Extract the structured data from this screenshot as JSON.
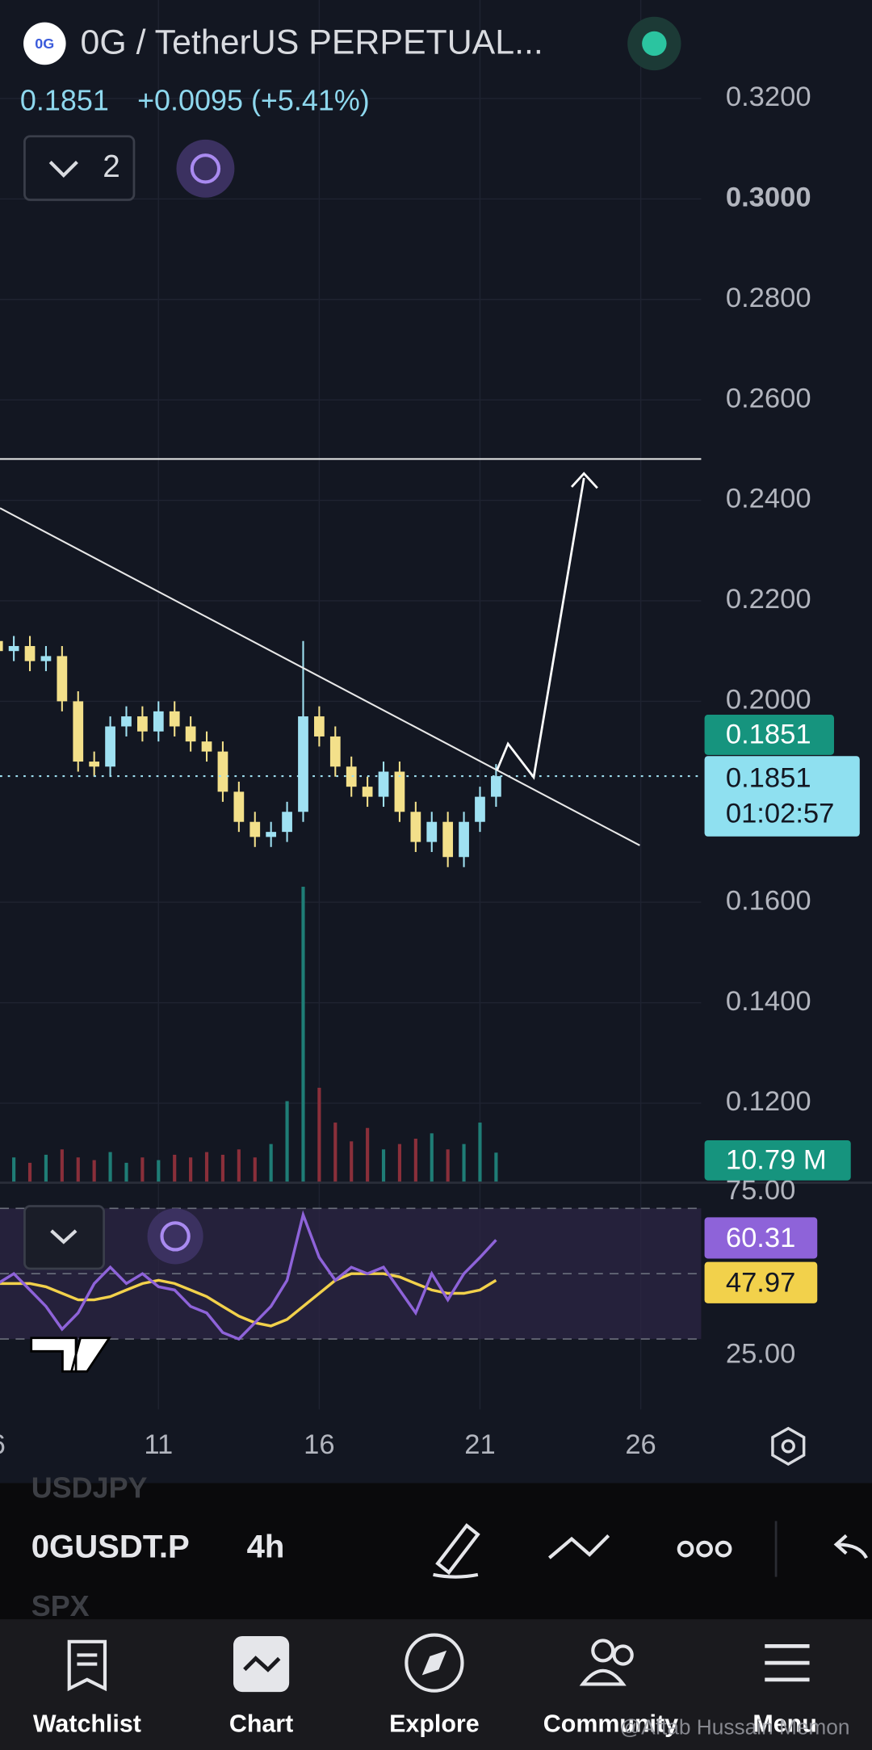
{
  "header": {
    "symbol_title": "0G / TetherUS PERPETUAL...",
    "change": "+0.0095 (+5.41%)",
    "indicator_count": "2"
  },
  "chart_data": {
    "type": "candlestick",
    "x": [
      6.0,
      6.5,
      7.0,
      7.5,
      8.0,
      8.5,
      9.0,
      9.5,
      10.0,
      10.5,
      11.0,
      11.5,
      12.0,
      12.5,
      13.0,
      13.5,
      14.0,
      14.5,
      15.0,
      15.5,
      16.0,
      16.5,
      17.0,
      17.5,
      18.0,
      18.5,
      19.0,
      19.5,
      20.0,
      20.5,
      21.0,
      21.5
    ],
    "open": [
      0.212,
      0.21,
      0.211,
      0.208,
      0.209,
      0.2,
      0.188,
      0.187,
      0.195,
      0.197,
      0.194,
      0.198,
      0.195,
      0.192,
      0.19,
      0.182,
      0.176,
      0.173,
      0.174,
      0.178,
      0.197,
      0.193,
      0.187,
      0.183,
      0.181,
      0.186,
      0.178,
      0.172,
      0.176,
      0.169,
      0.176,
      0.181
    ],
    "high": [
      0.214,
      0.213,
      0.213,
      0.211,
      0.211,
      0.202,
      0.19,
      0.197,
      0.199,
      0.199,
      0.2,
      0.2,
      0.197,
      0.194,
      0.192,
      0.184,
      0.178,
      0.176,
      0.18,
      0.212,
      0.199,
      0.195,
      0.189,
      0.185,
      0.188,
      0.188,
      0.18,
      0.178,
      0.178,
      0.178,
      0.183,
      0.1875
    ],
    "low": [
      0.208,
      0.208,
      0.206,
      0.206,
      0.198,
      0.186,
      0.185,
      0.185,
      0.193,
      0.192,
      0.192,
      0.193,
      0.19,
      0.188,
      0.18,
      0.174,
      0.171,
      0.171,
      0.172,
      0.176,
      0.191,
      0.185,
      0.181,
      0.179,
      0.179,
      0.176,
      0.17,
      0.17,
      0.167,
      0.167,
      0.174,
      0.179
    ],
    "close": [
      0.21,
      0.211,
      0.208,
      0.209,
      0.2,
      0.188,
      0.187,
      0.195,
      0.197,
      0.194,
      0.198,
      0.195,
      0.192,
      0.19,
      0.182,
      0.176,
      0.173,
      0.174,
      0.178,
      0.197,
      0.193,
      0.187,
      0.183,
      0.181,
      0.186,
      0.178,
      0.172,
      0.176,
      0.169,
      0.176,
      0.181,
      0.1851
    ],
    "up_color": "#9fe1f2",
    "down_color": "#f3e08a",
    "xlim": [
      6.07,
      27.88
    ],
    "xticks": [
      6,
      11,
      16,
      21,
      26
    ],
    "ylim": [
      0.1044,
      0.3396
    ],
    "yticks": [
      {
        "value": 0.32,
        "label": "0.3200"
      },
      {
        "value": 0.3,
        "label": "0.3000"
      },
      {
        "value": 0.28,
        "label": "0.2800"
      },
      {
        "value": 0.26,
        "label": "0.2600"
      },
      {
        "value": 0.24,
        "label": "0.2400"
      },
      {
        "value": 0.22,
        "label": "0.2200"
      },
      {
        "value": 0.2,
        "label": "0.2000"
      },
      {
        "value": 0.16,
        "label": "0.1600"
      },
      {
        "value": 0.14,
        "label": "0.1400"
      },
      {
        "value": 0.12,
        "label": "0.1200"
      }
    ],
    "grid": true,
    "mark_price_label": "0.1851",
    "countdown": "01:02:57",
    "volume": [
      8,
      9,
      7,
      10,
      12,
      9,
      8,
      11,
      7,
      9,
      8,
      10,
      9,
      11,
      10,
      12,
      9,
      14,
      30,
      110,
      35,
      22,
      15,
      20,
      12,
      14,
      16,
      18,
      12,
      14,
      22,
      10.79
    ],
    "volume_ylim": [
      0,
      125
    ],
    "volume_label": "10.79 M",
    "rsi": {
      "values": [
        47,
        50,
        45,
        40,
        33,
        38,
        47,
        52,
        47,
        50,
        46,
        45,
        40,
        38,
        32,
        30,
        35,
        40,
        48,
        68,
        55,
        48,
        52,
        50,
        52,
        45,
        38,
        50,
        42,
        50,
        55,
        60.31
      ],
      "ma": [
        47,
        47,
        47,
        46,
        44,
        42,
        42,
        43,
        45,
        47,
        48,
        47,
        45,
        43,
        40,
        37,
        35,
        34,
        36,
        40,
        44,
        48,
        50,
        50,
        50,
        49,
        47,
        45,
        44,
        44,
        45,
        47.97
      ],
      "color": "#8e63d9",
      "ma_color": "#f2d14b",
      "ylim": [
        9.15,
        77.52
      ],
      "yticks": [
        {
          "value": 75,
          "label": "75.00"
        },
        {
          "value": 25,
          "label": "25.00"
        }
      ],
      "bands": [
        70,
        50,
        30
      ]
    }
  },
  "toolbar": {
    "prev_symbol": "USDJPY",
    "symbol": "0GUSDT.P",
    "interval": "4h",
    "next_symbol": "SPX"
  },
  "nav": [
    "Watchlist",
    "Chart",
    "Explore",
    "Community",
    "Menu"
  ],
  "watermark": "@Aftab Hussain Memon"
}
